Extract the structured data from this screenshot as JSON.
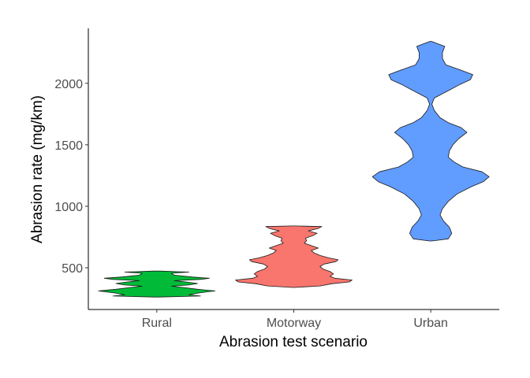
{
  "chart_data": {
    "type": "violin",
    "xlabel": "Abrasion test scenario",
    "ylabel": "Abrasion rate (mg/km)",
    "ylim": [
      150,
      2400
    ],
    "yticks": [
      500,
      1000,
      1500,
      2000
    ],
    "grid": false,
    "legend": "none",
    "categories": [
      "Rural",
      "Motorway",
      "Urban"
    ],
    "series": [
      {
        "category": "Rural",
        "color": "#00BA38",
        "min": 262,
        "max": 473,
        "density": [
          [
            262,
            0.05
          ],
          [
            270,
            0.75
          ],
          [
            280,
            0.55
          ],
          [
            295,
            0.72
          ],
          [
            312,
            1.0
          ],
          [
            325,
            0.7
          ],
          [
            340,
            0.45
          ],
          [
            350,
            0.25
          ],
          [
            360,
            0.55
          ],
          [
            372,
            0.7
          ],
          [
            385,
            0.5
          ],
          [
            395,
            0.3
          ],
          [
            405,
            0.75
          ],
          [
            415,
            0.9
          ],
          [
            425,
            0.6
          ],
          [
            440,
            0.3
          ],
          [
            455,
            0.25
          ],
          [
            465,
            0.55
          ],
          [
            473,
            0.05
          ]
        ]
      },
      {
        "category": "Motorway",
        "color": "#F8766D",
        "min": 340,
        "max": 840,
        "density": [
          [
            340,
            0.02
          ],
          [
            352,
            0.45
          ],
          [
            370,
            0.65
          ],
          [
            385,
            0.95
          ],
          [
            400,
            1.0
          ],
          [
            415,
            0.7
          ],
          [
            430,
            0.62
          ],
          [
            450,
            0.68
          ],
          [
            470,
            0.62
          ],
          [
            490,
            0.5
          ],
          [
            510,
            0.45
          ],
          [
            530,
            0.52
          ],
          [
            550,
            0.72
          ],
          [
            565,
            0.76
          ],
          [
            580,
            0.6
          ],
          [
            600,
            0.45
          ],
          [
            620,
            0.35
          ],
          [
            640,
            0.3
          ],
          [
            660,
            0.42
          ],
          [
            680,
            0.3
          ],
          [
            700,
            0.18
          ],
          [
            720,
            0.22
          ],
          [
            740,
            0.2
          ],
          [
            760,
            0.32
          ],
          [
            780,
            0.4
          ],
          [
            800,
            0.25
          ],
          [
            820,
            0.42
          ],
          [
            835,
            0.48
          ],
          [
            840,
            0.02
          ]
        ]
      },
      {
        "category": "Urban",
        "color": "#619CFF",
        "min": 718,
        "max": 2340,
        "density": [
          [
            718,
            0.02
          ],
          [
            735,
            0.3
          ],
          [
            780,
            0.36
          ],
          [
            830,
            0.32
          ],
          [
            880,
            0.22
          ],
          [
            930,
            0.16
          ],
          [
            980,
            0.2
          ],
          [
            1040,
            0.3
          ],
          [
            1100,
            0.45
          ],
          [
            1160,
            0.7
          ],
          [
            1200,
            0.9
          ],
          [
            1240,
            1.0
          ],
          [
            1280,
            0.88
          ],
          [
            1320,
            0.55
          ],
          [
            1360,
            0.4
          ],
          [
            1400,
            0.3
          ],
          [
            1450,
            0.32
          ],
          [
            1500,
            0.38
          ],
          [
            1550,
            0.48
          ],
          [
            1600,
            0.62
          ],
          [
            1640,
            0.52
          ],
          [
            1680,
            0.3
          ],
          [
            1720,
            0.16
          ],
          [
            1780,
            0.06
          ],
          [
            1830,
            0.02
          ],
          [
            1880,
            0.06
          ],
          [
            1940,
            0.3
          ],
          [
            1990,
            0.5
          ],
          [
            2030,
            0.68
          ],
          [
            2070,
            0.72
          ],
          [
            2110,
            0.5
          ],
          [
            2150,
            0.26
          ],
          [
            2200,
            0.2
          ],
          [
            2250,
            0.2
          ],
          [
            2300,
            0.24
          ],
          [
            2340,
            0.02
          ]
        ]
      }
    ]
  }
}
